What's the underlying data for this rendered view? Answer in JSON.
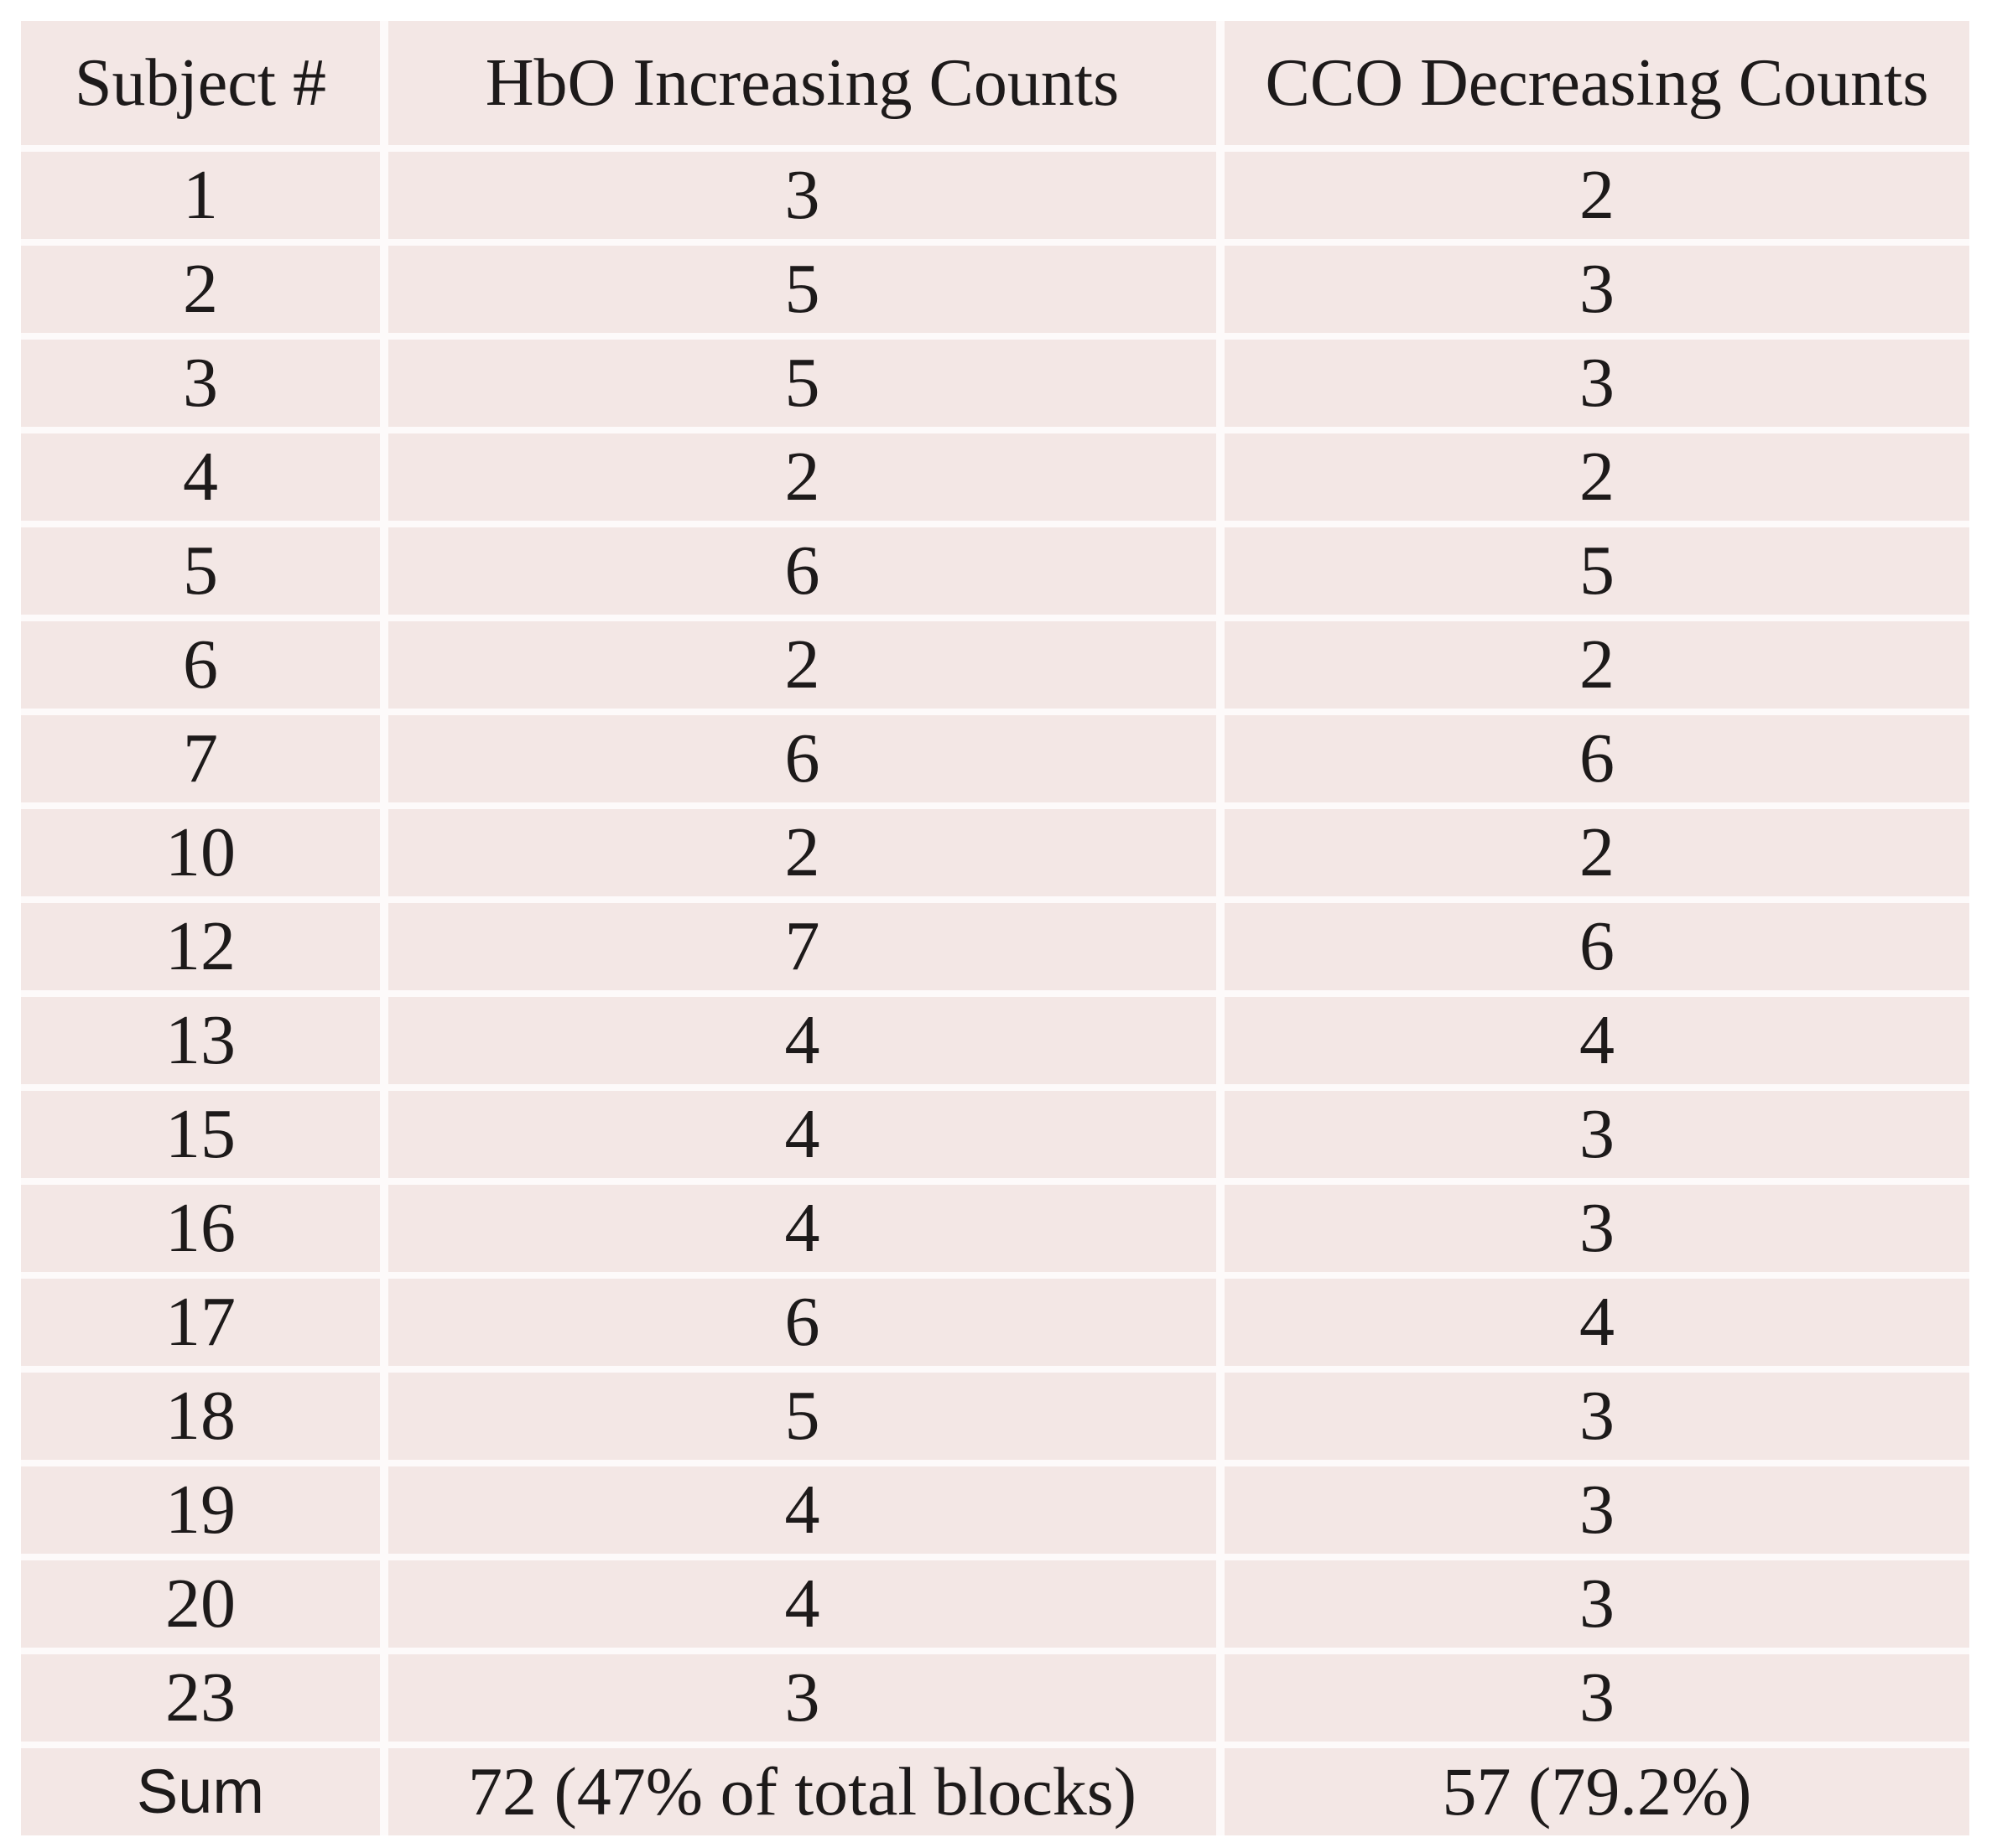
{
  "table": {
    "columns": [
      {
        "key": "subject",
        "label": "Subject #"
      },
      {
        "key": "hbo",
        "label": "HbO Increasing Counts"
      },
      {
        "key": "cco",
        "label": "CCO Decreasing Counts"
      }
    ],
    "rows": [
      {
        "subject": "1",
        "hbo": "3",
        "cco": "2"
      },
      {
        "subject": "2",
        "hbo": "5",
        "cco": "3"
      },
      {
        "subject": "3",
        "hbo": "5",
        "cco": "3"
      },
      {
        "subject": "4",
        "hbo": "2",
        "cco": "2"
      },
      {
        "subject": "5",
        "hbo": "6",
        "cco": "5"
      },
      {
        "subject": "6",
        "hbo": "2",
        "cco": "2"
      },
      {
        "subject": "7",
        "hbo": "6",
        "cco": "6"
      },
      {
        "subject": "10",
        "hbo": "2",
        "cco": "2"
      },
      {
        "subject": "12",
        "hbo": "7",
        "cco": "6"
      },
      {
        "subject": "13",
        "hbo": "4",
        "cco": "4"
      },
      {
        "subject": "15",
        "hbo": "4",
        "cco": "3"
      },
      {
        "subject": "16",
        "hbo": "4",
        "cco": "3"
      },
      {
        "subject": "17",
        "hbo": "6",
        "cco": "4"
      },
      {
        "subject": "18",
        "hbo": "5",
        "cco": "3"
      },
      {
        "subject": "19",
        "hbo": "4",
        "cco": "3"
      },
      {
        "subject": "20",
        "hbo": "4",
        "cco": "3"
      },
      {
        "subject": "23",
        "hbo": "3",
        "cco": "3"
      }
    ],
    "sum": {
      "label": "Sum",
      "hbo": "72 (47% of total blocks)",
      "cco": "57 (79.2%)"
    }
  },
  "colors": {
    "cell_bg": "#f3e7e5",
    "gap_bg": "#fdfafa",
    "text": "#1d1a1a"
  }
}
